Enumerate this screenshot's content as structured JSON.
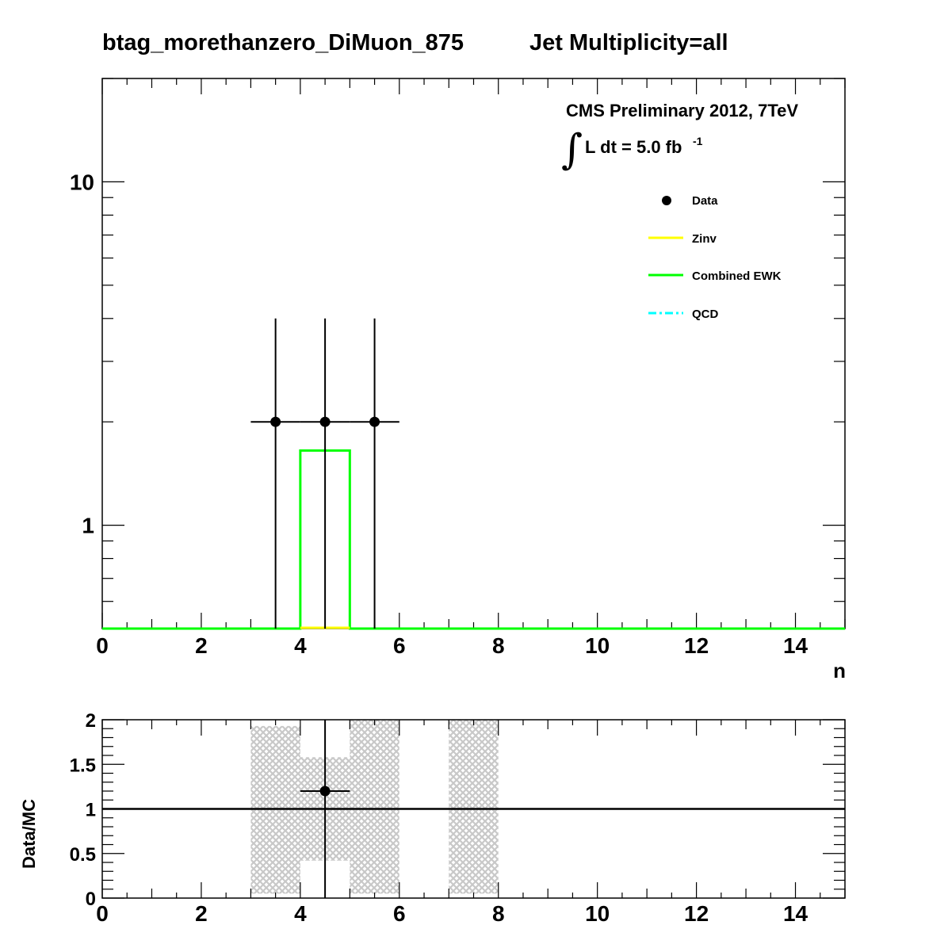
{
  "title": {
    "left": "btag_morethanzero_DiMuon_875",
    "right": "Jet Multiplicity=all"
  },
  "cms": {
    "line1": "CMS Preliminary 2012, 7TeV",
    "lumi_prefix": "L dt = 5.0 fb",
    "lumi_exp": "-1",
    "integral": "∫"
  },
  "colors": {
    "data": "#000000",
    "zinv": "#ffff00",
    "ewk": "#00ff00",
    "qcd": "#00ffff",
    "band": "#c8c8c8"
  },
  "chart_data": [
    {
      "type": "line",
      "name": "main",
      "xlabel": "n",
      "ylabel": "",
      "xlim": [
        0,
        15
      ],
      "ylim": [
        0.5,
        20
      ],
      "yscale": "log",
      "x_ticks": [
        "0",
        "2",
        "4",
        "6",
        "8",
        "10",
        "12",
        "14"
      ],
      "y_ticks": [
        "1",
        "10"
      ],
      "legend_position": "top-right",
      "legend": [
        "Data",
        "Zinv",
        "Combined EWK",
        "QCD"
      ],
      "series": [
        {
          "name": "Data",
          "style": "markers",
          "points": [
            {
              "x": 3.5,
              "y": 2,
              "xerr": [
                0.5,
                0.5
              ],
              "yerr_low": 1.9,
              "yerr_high": 2.0
            },
            {
              "x": 4.5,
              "y": 2,
              "xerr": [
                0.5,
                0.5
              ],
              "yerr_low": 1.9,
              "yerr_high": 2.0
            },
            {
              "x": 5.5,
              "y": 2,
              "xerr": [
                0.5,
                0.5
              ],
              "yerr_low": 1.9,
              "yerr_high": 2.0
            }
          ]
        },
        {
          "name": "Zinv",
          "style": "hist",
          "bins": [
            {
              "lo": 4,
              "hi": 5,
              "y": 0.5
            }
          ]
        },
        {
          "name": "Combined EWK",
          "style": "hist",
          "bins": [
            {
              "lo": 4,
              "hi": 5,
              "y": 1.65
            }
          ]
        },
        {
          "name": "QCD",
          "style": "hist",
          "bins": []
        }
      ]
    },
    {
      "type": "scatter",
      "name": "ratio",
      "xlabel": "",
      "ylabel": "Data/MC",
      "xlim": [
        0,
        15
      ],
      "ylim": [
        0,
        2
      ],
      "x_ticks": [
        "0",
        "2",
        "4",
        "6",
        "8",
        "10",
        "12",
        "14"
      ],
      "y_ticks": [
        "0",
        "0.5",
        "1",
        "1.5",
        "2"
      ],
      "reference_line": 1,
      "band": [
        {
          "lo": 3,
          "hi": 4,
          "ylo": 0.05,
          "yhi": 1.93
        },
        {
          "lo": 4,
          "hi": 5,
          "ylo": 0.42,
          "yhi": 1.58
        },
        {
          "lo": 5,
          "hi": 6,
          "ylo": 0.05,
          "yhi": 2.0
        },
        {
          "lo": 7,
          "hi": 8,
          "ylo": 0.05,
          "yhi": 2.0
        }
      ],
      "points": [
        {
          "x": 4.5,
          "y": 1.2,
          "xerr": [
            0.5,
            0.5
          ],
          "yerr_low": 1.2,
          "yerr_high": 0.8
        }
      ]
    }
  ]
}
